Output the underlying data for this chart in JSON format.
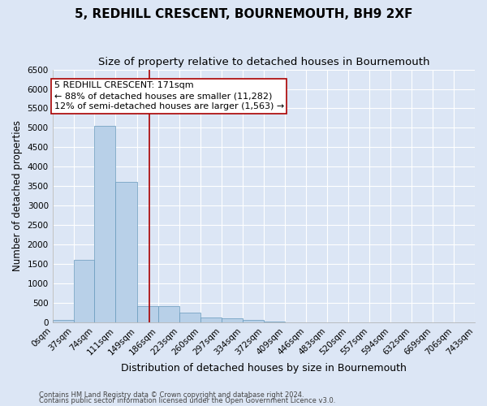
{
  "title": "5, REDHILL CRESCENT, BOURNEMOUTH, BH9 2XF",
  "subtitle": "Size of property relative to detached houses in Bournemouth",
  "xlabel": "Distribution of detached houses by size in Bournemouth",
  "ylabel": "Number of detached properties",
  "footnote1": "Contains HM Land Registry data © Crown copyright and database right 2024.",
  "footnote2": "Contains public sector information licensed under the Open Government Licence v3.0.",
  "bar_edges": [
    0,
    37,
    74,
    111,
    149,
    186,
    223,
    260,
    297,
    334,
    372,
    409,
    446,
    483,
    520,
    557,
    594,
    632,
    669,
    706,
    743
  ],
  "bar_labels": [
    "0sqm",
    "37sqm",
    "74sqm",
    "111sqm",
    "149sqm",
    "186sqm",
    "223sqm",
    "260sqm",
    "297sqm",
    "334sqm",
    "372sqm",
    "409sqm",
    "446sqm",
    "483sqm",
    "520sqm",
    "557sqm",
    "594sqm",
    "632sqm",
    "669sqm",
    "706sqm",
    "743sqm"
  ],
  "bar_heights": [
    60,
    1600,
    5050,
    3600,
    420,
    420,
    240,
    130,
    100,
    55,
    30,
    5,
    0,
    0,
    0,
    0,
    0,
    0,
    0,
    0
  ],
  "bar_color": "#b8d0e8",
  "bar_edgecolor": "#6699bb",
  "property_line_x": 171,
  "property_line_color": "#aa0000",
  "annotation_text": "5 REDHILL CRESCENT: 171sqm\n← 88% of detached houses are smaller (11,282)\n12% of semi-detached houses are larger (1,563) →",
  "annotation_box_color": "#ffffff",
  "annotation_box_edgecolor": "#aa0000",
  "ylim": [
    0,
    6500
  ],
  "yticks": [
    0,
    500,
    1000,
    1500,
    2000,
    2500,
    3000,
    3500,
    4000,
    4500,
    5000,
    5500,
    6000,
    6500
  ],
  "background_color": "#dce6f5",
  "plot_bg_color": "#dce6f5",
  "grid_color": "#ffffff",
  "title_fontsize": 11,
  "subtitle_fontsize": 9.5,
  "xlabel_fontsize": 9,
  "ylabel_fontsize": 8.5,
  "tick_fontsize": 7.5,
  "annotation_fontsize": 8
}
